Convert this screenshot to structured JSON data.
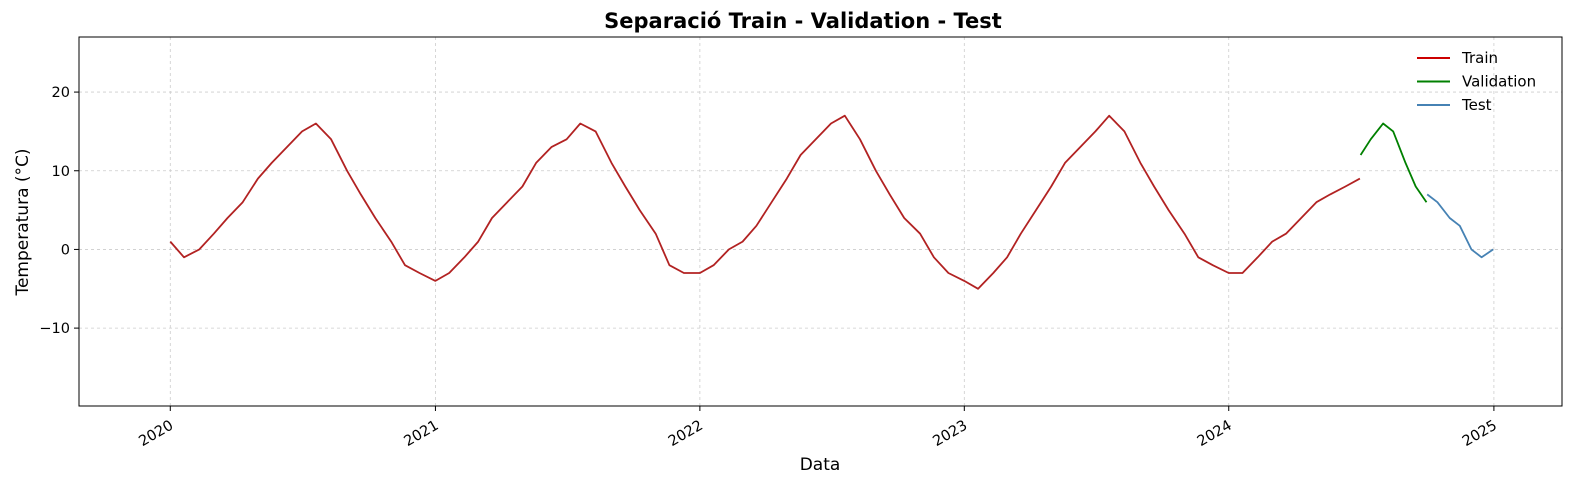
{
  "chart_data": {
    "type": "line",
    "title": "Separació Train - Validation - Test",
    "xlabel": "Data",
    "ylabel": "Temperatura (°C)",
    "xlim": [
      "2019-08-28",
      "2025-04-05"
    ],
    "ylim": [
      -19.9,
      27
    ],
    "x_ticks": [
      "2020",
      "2021",
      "2022",
      "2023",
      "2024",
      "2025"
    ],
    "y_ticks": [
      -10,
      0,
      10,
      20
    ],
    "y_tick_labels": [
      "−10",
      "0",
      "10",
      "20"
    ],
    "grid": true,
    "legend_position": "top-right",
    "series": [
      {
        "name": "Train",
        "color": "#b22222",
        "legend_color": "#cc0000",
        "x": [
          "2020-01-01",
          "2020-01-20",
          "2020-02-10",
          "2020-03-01",
          "2020-03-20",
          "2020-04-10",
          "2020-05-01",
          "2020-05-20",
          "2020-06-10",
          "2020-07-01",
          "2020-07-20",
          "2020-08-10",
          "2020-09-01",
          "2020-09-20",
          "2020-10-10",
          "2020-11-01",
          "2020-11-20",
          "2020-12-10",
          "2021-01-01",
          "2021-01-20",
          "2021-02-10",
          "2021-03-01",
          "2021-03-20",
          "2021-04-10",
          "2021-05-01",
          "2021-05-20",
          "2021-06-10",
          "2021-07-01",
          "2021-07-20",
          "2021-08-10",
          "2021-09-01",
          "2021-09-20",
          "2021-10-10",
          "2021-11-01",
          "2021-11-20",
          "2021-12-10",
          "2022-01-01",
          "2022-01-20",
          "2022-02-10",
          "2022-03-01",
          "2022-03-20",
          "2022-04-10",
          "2022-05-01",
          "2022-05-20",
          "2022-06-10",
          "2022-07-01",
          "2022-07-20",
          "2022-08-10",
          "2022-09-01",
          "2022-09-20",
          "2022-10-10",
          "2022-11-01",
          "2022-11-20",
          "2022-12-10",
          "2023-01-01",
          "2023-01-20",
          "2023-02-10",
          "2023-03-01",
          "2023-03-20",
          "2023-04-10",
          "2023-05-01",
          "2023-05-20",
          "2023-06-10",
          "2023-07-01",
          "2023-07-20",
          "2023-08-10",
          "2023-09-01",
          "2023-09-20",
          "2023-10-10",
          "2023-11-01",
          "2023-11-20",
          "2023-12-10",
          "2024-01-01",
          "2024-01-20",
          "2024-02-10",
          "2024-03-01",
          "2024-03-20",
          "2024-04-10",
          "2024-05-01",
          "2024-05-20",
          "2024-06-10",
          "2024-06-30"
        ],
        "values": [
          1,
          -1,
          0,
          2,
          4,
          6,
          9,
          11,
          13,
          15,
          16,
          14,
          10,
          7,
          4,
          1,
          -2,
          -3,
          -4,
          -3,
          -1,
          1,
          4,
          6,
          8,
          11,
          13,
          14,
          16,
          15,
          11,
          8,
          5,
          2,
          -2,
          -3,
          -3,
          -2,
          0,
          1,
          3,
          6,
          9,
          12,
          14,
          16,
          17,
          14,
          10,
          7,
          4,
          2,
          -1,
          -3,
          -4,
          -5,
          -3,
          -1,
          2,
          5,
          8,
          11,
          13,
          15,
          17,
          15,
          11,
          8,
          5,
          2,
          -1,
          -2,
          -3,
          -3,
          -1,
          1,
          2,
          4,
          6,
          7,
          8,
          9
        ]
      },
      {
        "name": "Validation",
        "color": "#008000",
        "legend_color": "#008000",
        "x": [
          "2024-07-01",
          "2024-07-15",
          "2024-08-01",
          "2024-08-15",
          "2024-09-01",
          "2024-09-15",
          "2024-09-30"
        ],
        "values": [
          12,
          14,
          16,
          15,
          11,
          8,
          6
        ]
      },
      {
        "name": "Test",
        "color": "#4682b4",
        "legend_color": "#4682b4",
        "x": [
          "2024-10-01",
          "2024-10-15",
          "2024-11-01",
          "2024-11-15",
          "2024-12-01",
          "2024-12-15",
          "2024-12-31"
        ],
        "values": [
          7,
          6,
          4,
          3,
          0,
          -1,
          0
        ]
      }
    ]
  }
}
